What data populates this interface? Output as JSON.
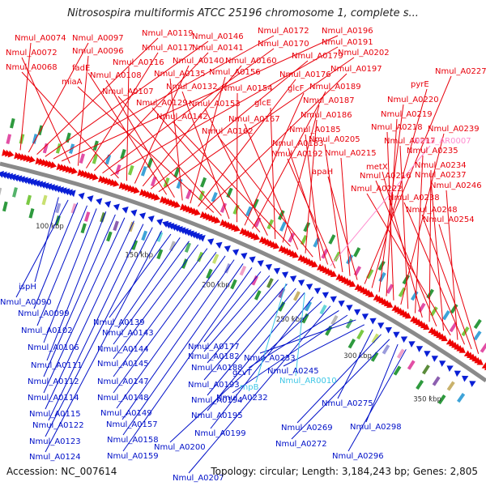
{
  "title": "Nitrosospira multiformis ATCC 25196 chromosome 1, complete s...",
  "footer": {
    "accession": "Accession: NC_007614",
    "topology": "Topology: circular; Length: 3,184,243 bp; Genes: 2,805"
  },
  "colors": {
    "forward_label": "#e8000b",
    "reverse_label": "#0010c8",
    "rna_label": "#3cc6e6",
    "pseudo_label": "#ff8ccf",
    "backbone": "#8a8a8a",
    "forward_arrow": "#ee0000",
    "reverse_arrow": "#0a1fd6"
  },
  "tick_labels": [
    "100 kbp",
    "150 kbp",
    "200 kbp",
    "250 kbp",
    "300 kbp",
    "350 kbp"
  ],
  "forward_labels": [
    "Nmul_A0074",
    "Nmul_A0097",
    "Nmul_A0119",
    "Nmul_A0146",
    "Nmul_A0172",
    "Nmul_A0196",
    "Nmul_A0072",
    "Nmul_A0096",
    "Nmul_A0117",
    "Nmul_A0141",
    "Nmul_A0170",
    "Nmul_A0191",
    "Nmul_A0068",
    "Nmul_A0116",
    "Nmul_A0140",
    "Nmul_A0160",
    "Nmul_A0179",
    "Nmul_A0202",
    "fadE",
    "Nmul_A0108",
    "Nmul_A0135",
    "Nmul_A0156",
    "Nmul_A0176",
    "Nmul_A0197",
    "miaA",
    "Nmul_A0107",
    "Nmul_A0132",
    "Nmul_A0154",
    "glcF",
    "Nmul_A0189",
    "Nmul_A0129",
    "Nmul_A0153",
    "glcE",
    "Nmul_A0187",
    "Nmul_A0142",
    "Nmul_A0167",
    "Nmul_A0186",
    "Nmul_A0162",
    "Nmul_A0185",
    "Nmul_A0183",
    "Nmul_A0192",
    "Nmul_A0205",
    "Nmul_A0215",
    "apaH",
    "Nmul_A0227",
    "pyrE",
    "Nmul_A0220",
    "Nmul_A0219",
    "Nmul_A0218",
    "Nmul_A0239",
    "Nmul_A0217",
    "Nmul_A0235",
    "metX",
    "Nmul_A0234",
    "Nmul_A0216",
    "Nmul_A0237",
    "Nmul_A0222",
    "Nmul_A0246",
    "Nmul_A0238",
    "Nmul_A0248",
    "Nmul_A0254"
  ],
  "pseudo_labels": [
    "Nmul_AR0007"
  ],
  "reverse_labels": [
    "ispH",
    "Nmul_A0090",
    "Nmul_A0099",
    "Nmul_A0102",
    "Nmul_A0106",
    "Nmul_A0111",
    "Nmul_A0112",
    "Nmul_A0114",
    "Nmul_A0115",
    "Nmul_A0122",
    "Nmul_A0123",
    "Nmul_A0124",
    "Nmul_A0139",
    "Nmul_A0143",
    "Nmul_A0144",
    "Nmul_A0145",
    "Nmul_A0147",
    "Nmul_A0148",
    "Nmul_A0149",
    "Nmul_A0157",
    "Nmul_A0158",
    "Nmul_A0159",
    "Nmul_A0177",
    "Nmul_A0182",
    "Nmul_A0188",
    "Nmul_A0193",
    "Nmul_A0194",
    "Nmul_A0195",
    "Nmul_A0199",
    "Nmul_A0200",
    "Nmul_A0207",
    "gcvT",
    "Nmul_A0232",
    "Nmul_A0233",
    "Nmul_A0245",
    "Nmul_A0275",
    "Nmul_A0269",
    "Nmul_A0272",
    "Nmul_A0298",
    "Nmul_A0296"
  ],
  "rna_labels": [
    "rnpB",
    "Nmul_AR0010"
  ]
}
